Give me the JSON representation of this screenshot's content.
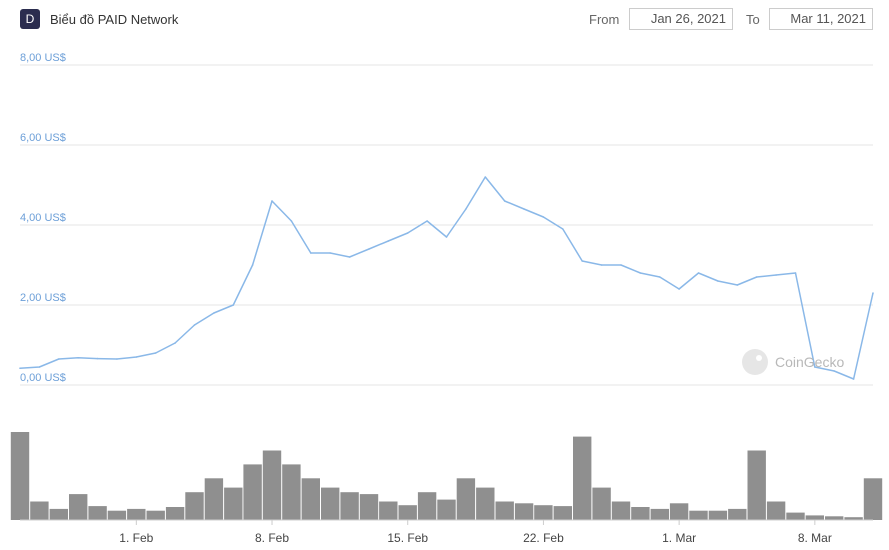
{
  "header": {
    "logo_letter": "D",
    "title": "Biểu đồ PAID Network",
    "from_label": "From",
    "from_date": "Jan 26, 2021",
    "to_label": "To",
    "to_date": "Mar 11, 2021"
  },
  "watermark": "CoinGecko",
  "chart_data": {
    "type": "line",
    "title": "Biểu đồ PAID Network",
    "x_start": "2021-01-26",
    "x_end": "2021-03-11",
    "y_ticks": [
      "8,00 US$",
      "6,00 US$",
      "4,00 US$",
      "2,00 US$",
      "0,00 US$"
    ],
    "x_ticks": [
      "1. Feb",
      "8. Feb",
      "15. Feb",
      "22. Feb",
      "1. Mar",
      "8. Mar"
    ],
    "ylim": [
      0,
      8
    ],
    "price_series": {
      "name": "Price",
      "x": [
        "2021-01-26",
        "2021-01-27",
        "2021-01-28",
        "2021-01-29",
        "2021-01-30",
        "2021-01-31",
        "2021-02-01",
        "2021-02-02",
        "2021-02-03",
        "2021-02-04",
        "2021-02-05",
        "2021-02-06",
        "2021-02-07",
        "2021-02-08",
        "2021-02-09",
        "2021-02-10",
        "2021-02-11",
        "2021-02-12",
        "2021-02-13",
        "2021-02-14",
        "2021-02-15",
        "2021-02-16",
        "2021-02-17",
        "2021-02-18",
        "2021-02-19",
        "2021-02-20",
        "2021-02-21",
        "2021-02-22",
        "2021-02-23",
        "2021-02-24",
        "2021-02-25",
        "2021-02-26",
        "2021-02-27",
        "2021-02-28",
        "2021-03-01",
        "2021-03-02",
        "2021-03-03",
        "2021-03-04",
        "2021-03-05",
        "2021-03-06",
        "2021-03-07",
        "2021-03-08",
        "2021-03-09",
        "2021-03-10",
        "2021-03-11"
      ],
      "y": [
        0.42,
        0.45,
        0.65,
        0.68,
        0.66,
        0.65,
        0.7,
        0.8,
        1.05,
        1.5,
        1.8,
        2.0,
        3.0,
        4.6,
        4.1,
        3.3,
        3.3,
        3.2,
        3.4,
        3.6,
        3.8,
        4.1,
        3.7,
        4.4,
        5.2,
        4.6,
        4.4,
        4.2,
        3.9,
        3.1,
        3.0,
        3.0,
        2.8,
        2.7,
        2.4,
        2.8,
        2.6,
        2.5,
        2.7,
        2.75,
        2.8,
        0.45,
        0.35,
        0.15,
        2.3
      ]
    },
    "volume_series": {
      "name": "Volume",
      "x": [
        "2021-01-26",
        "2021-01-27",
        "2021-01-28",
        "2021-01-29",
        "2021-01-30",
        "2021-01-31",
        "2021-02-01",
        "2021-02-02",
        "2021-02-03",
        "2021-02-04",
        "2021-02-05",
        "2021-02-06",
        "2021-02-07",
        "2021-02-08",
        "2021-02-09",
        "2021-02-10",
        "2021-02-11",
        "2021-02-12",
        "2021-02-13",
        "2021-02-14",
        "2021-02-15",
        "2021-02-16",
        "2021-02-17",
        "2021-02-18",
        "2021-02-19",
        "2021-02-20",
        "2021-02-21",
        "2021-02-22",
        "2021-02-23",
        "2021-02-24",
        "2021-02-25",
        "2021-02-26",
        "2021-02-27",
        "2021-02-28",
        "2021-03-01",
        "2021-03-02",
        "2021-03-03",
        "2021-03-04",
        "2021-03-05",
        "2021-03-06",
        "2021-03-07",
        "2021-03-08",
        "2021-03-09",
        "2021-03-10",
        "2021-03-11"
      ],
      "values": [
        0.95,
        0.2,
        0.12,
        0.28,
        0.15,
        0.1,
        0.12,
        0.1,
        0.14,
        0.3,
        0.45,
        0.35,
        0.6,
        0.75,
        0.6,
        0.45,
        0.35,
        0.3,
        0.28,
        0.2,
        0.16,
        0.3,
        0.22,
        0.45,
        0.35,
        0.2,
        0.18,
        0.16,
        0.15,
        0.9,
        0.35,
        0.2,
        0.14,
        0.12,
        0.18,
        0.1,
        0.1,
        0.12,
        0.75,
        0.2,
        0.08,
        0.05,
        0.04,
        0.03,
        0.45
      ]
    }
  }
}
